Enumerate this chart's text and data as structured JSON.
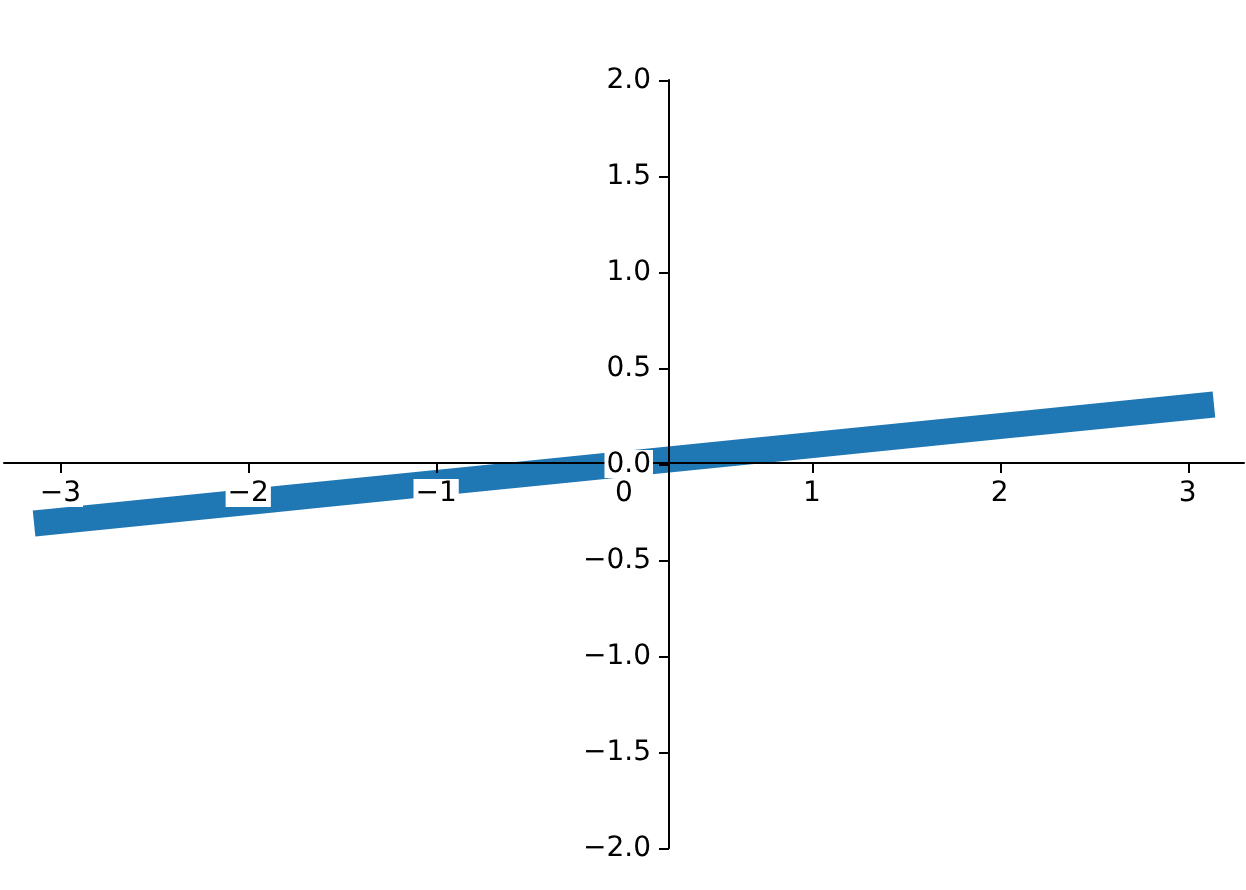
{
  "chart_data": {
    "type": "line",
    "x": [
      -3.14,
      3.14
    ],
    "values": [
      -0.31,
      0.31
    ],
    "color": "#1f77b4",
    "marker": "none",
    "line_style": "solid",
    "xlim": [
      -3.3,
      3.3
    ],
    "xticks": [
      {
        "value": -3,
        "label": "−3"
      },
      {
        "value": -2,
        "label": "−2"
      },
      {
        "value": -1,
        "label": "−1"
      },
      0,
      1,
      2,
      3
    ],
    "ylim": [
      -2,
      2
    ],
    "yticks": [
      {
        "value": -2,
        "label": "−2.0"
      },
      {
        "value": -1.5,
        "label": "−1.5"
      },
      {
        "value": -1,
        "label": "−1.0"
      },
      {
        "value": -0.5,
        "label": "−0.5"
      },
      {
        "value": 0,
        "label": "0.0"
      },
      {
        "value": 0.5,
        "label": "0.5"
      },
      {
        "value": 1,
        "label": "1.0"
      },
      {
        "value": 1.5,
        "label": "1.5"
      },
      {
        "value": 2,
        "label": "2.0"
      }
    ]
  }
}
